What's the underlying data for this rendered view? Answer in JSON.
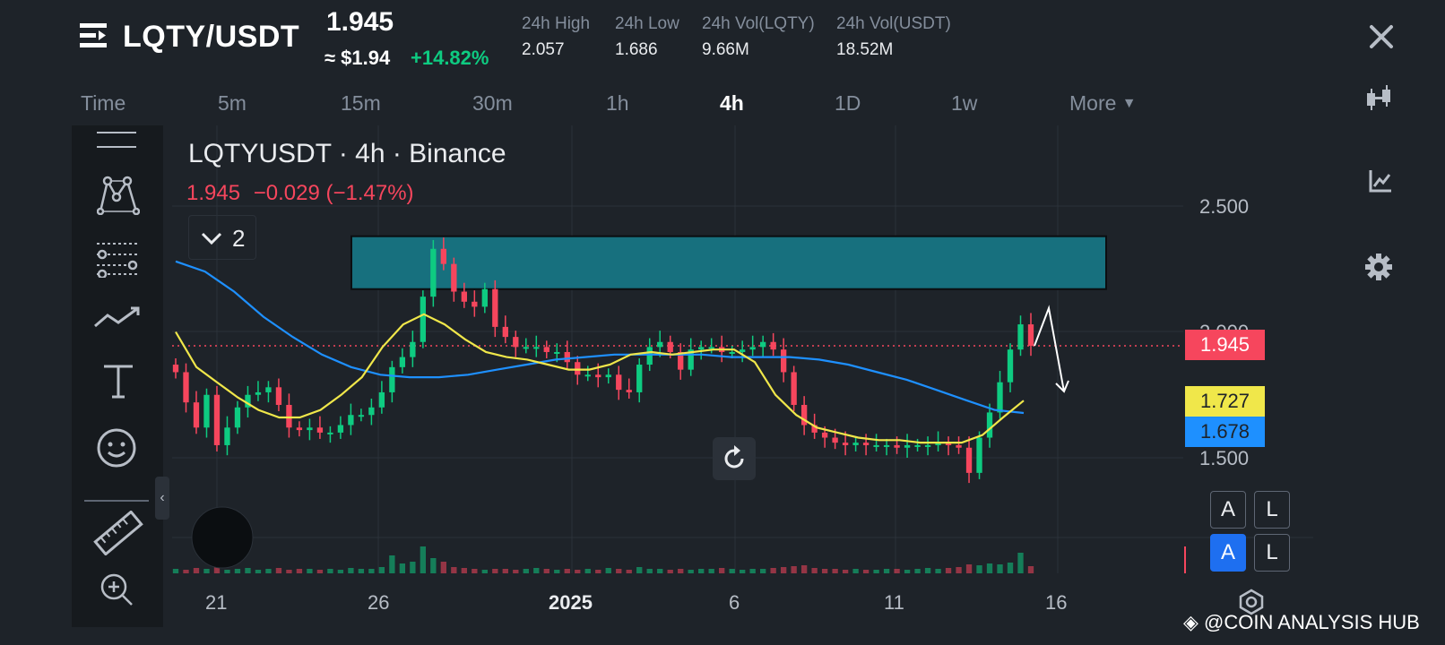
{
  "header": {
    "pair": "LQTY/USDT",
    "price": "1.945",
    "usd_price": "≈ $1.94",
    "change": "+14.82%",
    "stats": [
      {
        "label": "24h High",
        "value": "2.057"
      },
      {
        "label": "24h Low",
        "value": "1.686"
      },
      {
        "label": "24h Vol(LQTY)",
        "value": "9.66M"
      },
      {
        "label": "24h Vol(USDT)",
        "value": "18.52M"
      }
    ]
  },
  "timeframes": {
    "time_label": "Time",
    "items": [
      "5m",
      "15m",
      "30m",
      "1h",
      "4h",
      "1D",
      "1w"
    ],
    "active": "4h",
    "more": "More"
  },
  "chart": {
    "symbol_line": "LQTYUSDT · 4h · Binance",
    "last": "1.945",
    "change": "−0.029 (−1.47%)",
    "indicator_count": "2",
    "price_label": "1.945",
    "ma_short_label": "1.727",
    "ma_long_label": "1.678",
    "button_a": "A",
    "button_l": "L"
  },
  "colors": {
    "up": "#0ecb81",
    "down": "#f6465d",
    "ma_short": "#f0e74a",
    "ma_long": "#1e90ff",
    "zone": "#17707e",
    "background": "#1e2329"
  },
  "watermark": "@COIN ANALYSIS HUB",
  "chart_data": {
    "type": "candlestick",
    "y_ticks": [
      "2.500",
      "2.000",
      "1.500"
    ],
    "x_ticks": [
      "21",
      "26",
      "2025",
      "6",
      "11",
      "16"
    ],
    "ylim": [
      1.35,
      2.7
    ],
    "resistance_zone": [
      2.17,
      2.38
    ],
    "current_price": 1.945,
    "series": [
      {
        "name": "close",
        "values": [
          1.84,
          1.72,
          1.62,
          1.75,
          1.55,
          1.62,
          1.7,
          1.75,
          1.76,
          1.78,
          1.71,
          1.62,
          1.61,
          1.62,
          1.6,
          1.6,
          1.63,
          1.67,
          1.67,
          1.7,
          1.76,
          1.86,
          1.9,
          1.96,
          2.14,
          2.33,
          2.27,
          2.16,
          2.12,
          2.1,
          2.17,
          2.02,
          1.98,
          1.94,
          1.94,
          1.94,
          1.92,
          1.92,
          1.88,
          1.83,
          1.83,
          1.82,
          1.83,
          1.77,
          1.76,
          1.87,
          1.94,
          1.96,
          1.92,
          1.85,
          1.93,
          1.94,
          1.94,
          1.92,
          1.92,
          1.93,
          1.94,
          1.96,
          1.93,
          1.84,
          1.71,
          1.63,
          1.6,
          1.58,
          1.56,
          1.55,
          1.56,
          1.55,
          1.55,
          1.55,
          1.54,
          1.55,
          1.55,
          1.55,
          1.56,
          1.55,
          1.54,
          1.44,
          1.58,
          1.68,
          1.8,
          1.93,
          2.03,
          1.945
        ]
      },
      {
        "name": "ma_short",
        "values": [
          2.0,
          1.86,
          1.8,
          1.74,
          1.69,
          1.66,
          1.66,
          1.69,
          1.75,
          1.82,
          1.94,
          2.03,
          2.07,
          2.03,
          1.97,
          1.92,
          1.9,
          1.89,
          1.87,
          1.85,
          1.85,
          1.87,
          1.91,
          1.92,
          1.91,
          1.92,
          1.93,
          1.93,
          1.88,
          1.75,
          1.67,
          1.62,
          1.6,
          1.58,
          1.57,
          1.57,
          1.56,
          1.56,
          1.56,
          1.59,
          1.66,
          1.727
        ]
      },
      {
        "name": "ma_long",
        "values": [
          2.28,
          2.24,
          2.16,
          2.06,
          1.98,
          1.91,
          1.86,
          1.83,
          1.82,
          1.82,
          1.83,
          1.85,
          1.87,
          1.89,
          1.9,
          1.91,
          1.91,
          1.91,
          1.91,
          1.9,
          1.9,
          1.9,
          1.89,
          1.87,
          1.84,
          1.81,
          1.77,
          1.73,
          1.69,
          1.678
        ]
      }
    ],
    "volume": [
      5,
      4,
      6,
      5,
      9,
      4,
      5,
      6,
      4,
      5,
      6,
      4,
      5,
      5,
      4,
      5,
      4,
      6,
      5,
      5,
      7,
      20,
      11,
      13,
      30,
      17,
      13,
      7,
      6,
      5,
      4,
      5,
      5,
      4,
      5,
      6,
      5,
      4,
      5,
      4,
      5,
      4,
      6,
      5,
      4,
      7,
      5,
      5,
      4,
      5,
      4,
      5,
      5,
      6,
      5,
      4,
      5,
      5,
      6,
      7,
      8,
      9,
      6,
      5,
      5,
      4,
      5,
      4,
      4,
      5,
      5,
      4,
      5,
      6,
      5,
      6,
      7,
      10,
      9,
      11,
      10,
      12,
      23,
      8
    ]
  }
}
